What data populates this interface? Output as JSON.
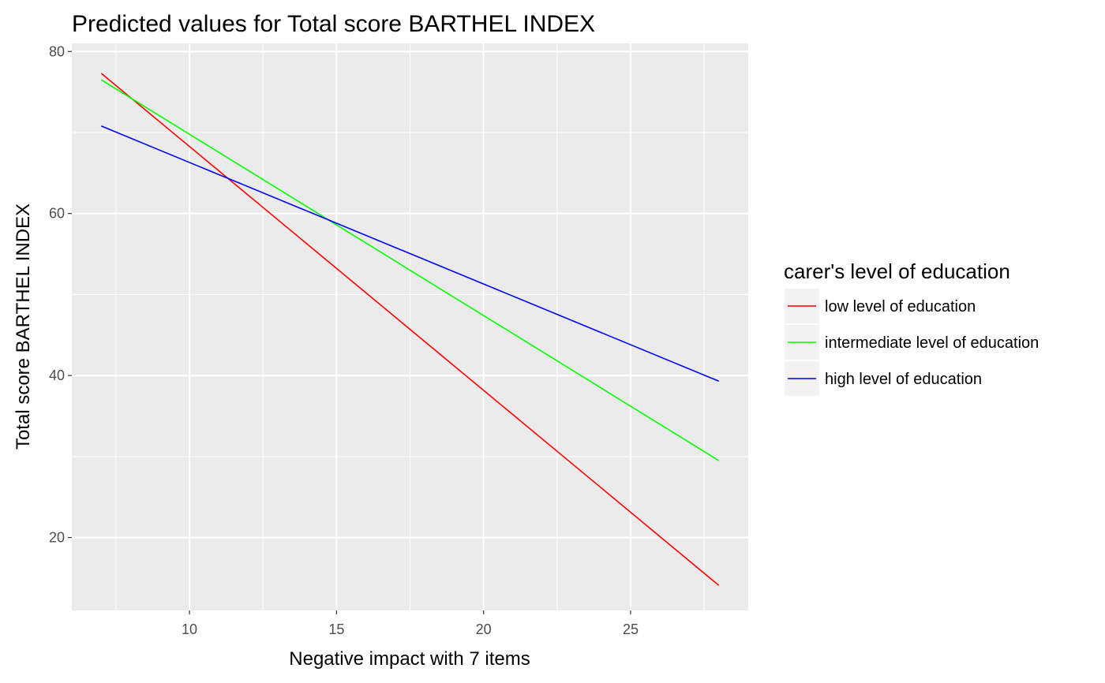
{
  "chart_data": {
    "type": "line",
    "title": "Predicted values for Total score BARTHEL INDEX",
    "xlabel": "Negative impact with 7 items",
    "ylabel": "Total score BARTHEL INDEX",
    "xlim": [
      6,
      29
    ],
    "ylim": [
      11,
      81
    ],
    "x_ticks": [
      10,
      15,
      20,
      25
    ],
    "y_ticks": [
      20,
      40,
      60,
      80
    ],
    "x_tick_labels": [
      "10",
      "15",
      "20",
      "25"
    ],
    "y_tick_labels": [
      "20",
      "40",
      "60",
      "80"
    ],
    "grid": true,
    "background": "#ebebeb",
    "legend": {
      "title": "carer's level of education",
      "position": "right"
    },
    "series": [
      {
        "name": "low level of education",
        "color": "#ff0000",
        "x": [
          7,
          28
        ],
        "y": [
          77.3,
          14.1
        ]
      },
      {
        "name": "intermediate level of education",
        "color": "#00ff00",
        "x": [
          7,
          28
        ],
        "y": [
          76.5,
          29.5
        ]
      },
      {
        "name": "high level of education",
        "color": "#0000ff",
        "x": [
          7,
          28
        ],
        "y": [
          70.8,
          39.3
        ]
      }
    ]
  }
}
